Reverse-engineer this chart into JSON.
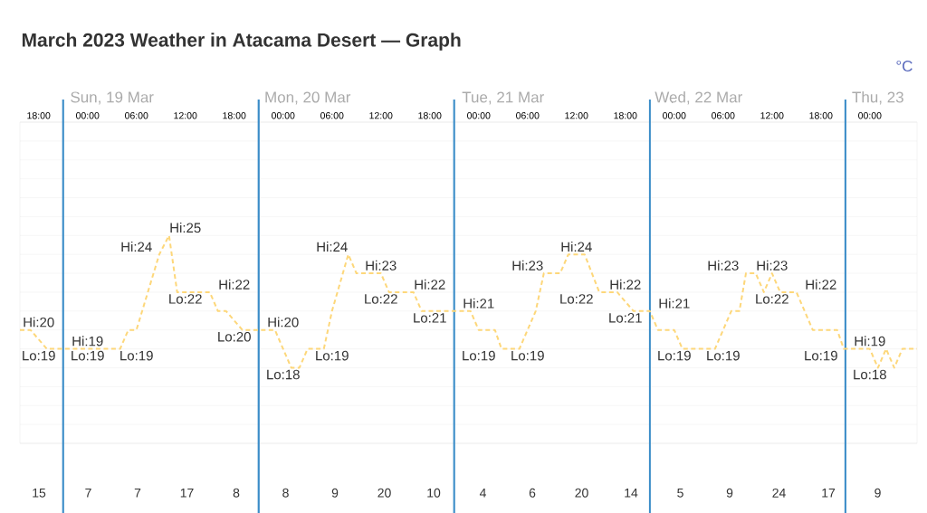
{
  "chart_data": [
    {
      "type": "line",
      "title": "March 2023 Weather in Atacama Desert — Graph",
      "series": [
        {
          "color": "#fdd77a",
          "line_style": "dashed",
          "marker": "none",
          "x": [
            "2023-03-18T15:42",
            "2023-03-18T17:00",
            "2023-03-18T19:00",
            "2023-03-19T00:00",
            "2023-03-19T00:30",
            "2023-03-19T04:00",
            "2023-03-19T05:00",
            "2023-03-19T06:00",
            "2023-03-19T08:48",
            "2023-03-19T10:00",
            "2023-03-19T11:00",
            "2023-03-19T15:00",
            "2023-03-19T16:00",
            "2023-03-19T17:00",
            "2023-03-19T19:00",
            "2023-03-19T23:00",
            "2023-03-20T01:00",
            "2023-03-20T02:00",
            "2023-03-20T03:00",
            "2023-03-20T05:00",
            "2023-03-20T06:00",
            "2023-03-20T08:00",
            "2023-03-20T09:00",
            "2023-03-20T12:00",
            "2023-03-20T13:00",
            "2023-03-20T16:00",
            "2023-03-20T17:00",
            "2023-03-20T23:00",
            "2023-03-21T00:00",
            "2023-03-21T02:00",
            "2023-03-21T02:48",
            "2023-03-21T05:00",
            "2023-03-21T07:00",
            "2023-03-21T08:00",
            "2023-03-21T10:00",
            "2023-03-21T11:00",
            "2023-03-21T13:00",
            "2023-03-21T14:48",
            "2023-03-21T17:00",
            "2023-03-21T19:00",
            "2023-03-21T21:00",
            "2023-03-21T22:00",
            "2023-03-22T00:00",
            "2023-03-22T01:00",
            "2023-03-22T05:00",
            "2023-03-22T07:00",
            "2023-03-22T08:00",
            "2023-03-22T08:48",
            "2023-03-22T10:00",
            "2023-03-22T11:00",
            "2023-03-22T12:00",
            "2023-03-22T13:00",
            "2023-03-22T15:00",
            "2023-03-22T17:00",
            "2023-03-22T20:00",
            "2023-03-22T20:48",
            "2023-03-23T00:00",
            "2023-03-23T01:00",
            "2023-03-23T02:00",
            "2023-03-23T03:00",
            "2023-03-23T04:00",
            "2023-03-23T05:48"
          ],
          "values": [
            20,
            20,
            19,
            19,
            19,
            19,
            20,
            20,
            24,
            25,
            22,
            22,
            21,
            21,
            20,
            20,
            18,
            18,
            19,
            19,
            21,
            24,
            23,
            23,
            22,
            22,
            21,
            21,
            20,
            20,
            19,
            19,
            21,
            23,
            23,
            24,
            24,
            22,
            22,
            21,
            21,
            20,
            20,
            19,
            19,
            21,
            21,
            23,
            23,
            22,
            23,
            22,
            22,
            20,
            20,
            19,
            19,
            18,
            19,
            18,
            19,
            19
          ],
          "value_labels": [
            null,
            "Hi:20",
            "Lo:19",
            "Hi:19",
            "Lo:19",
            "Lo:19",
            null,
            null,
            "Hi:24",
            "Hi:25",
            "Lo:22",
            "Hi:22",
            null,
            null,
            "Lo:20",
            "Hi:20",
            "Lo:18",
            null,
            null,
            "Lo:19",
            null,
            "Hi:24",
            "Hi:23",
            null,
            "Lo:22",
            "Hi:22",
            "Lo:21",
            "Hi:21",
            null,
            null,
            "Lo:19",
            "Lo:19",
            null,
            "Hi:23",
            null,
            "Hi:24",
            null,
            "Lo:22",
            "Hi:22",
            "Lo:21",
            "Hi:21",
            null,
            null,
            "Lo:19",
            "Lo:19",
            null,
            null,
            "Hi:23",
            null,
            null,
            "Hi:23",
            "Lo:22",
            "Hi:22",
            null,
            null,
            "Lo:19",
            "Hi:19",
            "Lo:18",
            null,
            null,
            null,
            null
          ]
        }
      ],
      "xlim": [
        "2023-03-18T15:42",
        "2023-03-23T05:48"
      ],
      "ylim": [
        14,
        31
      ],
      "xticks": [
        {
          "value": "2023-03-18T18:00",
          "label": "18:00"
        },
        {
          "value": "2023-03-19T00:00",
          "label": "00:00"
        },
        {
          "value": "2023-03-19T06:00",
          "label": "06:00"
        },
        {
          "value": "2023-03-19T12:00",
          "label": "12:00"
        },
        {
          "value": "2023-03-19T18:00",
          "label": "18:00"
        },
        {
          "value": "2023-03-20T00:00",
          "label": "00:00"
        },
        {
          "value": "2023-03-20T06:00",
          "label": "06:00"
        },
        {
          "value": "2023-03-20T12:00",
          "label": "12:00"
        },
        {
          "value": "2023-03-20T18:00",
          "label": "18:00"
        },
        {
          "value": "2023-03-21T00:00",
          "label": "00:00"
        },
        {
          "value": "2023-03-21T06:00",
          "label": "06:00"
        },
        {
          "value": "2023-03-21T12:00",
          "label": "12:00"
        },
        {
          "value": "2023-03-21T18:00",
          "label": "18:00"
        },
        {
          "value": "2023-03-22T00:00",
          "label": "00:00"
        },
        {
          "value": "2023-03-22T06:00",
          "label": "06:00"
        },
        {
          "value": "2023-03-22T12:00",
          "label": "12:00"
        },
        {
          "value": "2023-03-22T18:00",
          "label": "18:00"
        },
        {
          "value": "2023-03-23T00:00",
          "label": "00:00"
        }
      ],
      "x2lim": [
        "2023-03-18T15:42",
        "2023-03-23T05:48"
      ],
      "x2ticks": [
        {
          "value": "2023-03-19T03:00",
          "label": "Sun, 19 Mar"
        },
        {
          "value": "2023-03-20T03:00",
          "label": "Mon, 20 Mar"
        },
        {
          "value": "2023-03-21T03:00",
          "label": "Tue, 21 Mar"
        },
        {
          "value": "2023-03-22T03:00",
          "label": "Wed, 22 Mar"
        },
        {
          "value": "2023-03-23T01:00",
          "label": "Thu, 23"
        }
      ],
      "yticks": [
        {
          "value": 14,
          "label": null
        },
        {
          "value": 15,
          "label": null
        },
        {
          "value": 16,
          "label": null
        },
        {
          "value": 17,
          "label": null
        },
        {
          "value": 18,
          "label": null
        },
        {
          "value": 19,
          "label": null
        },
        {
          "value": 20,
          "label": null
        },
        {
          "value": 21,
          "label": null
        },
        {
          "value": 22,
          "label": null
        },
        {
          "value": 23,
          "label": null
        },
        {
          "value": 24,
          "label": null
        },
        {
          "value": 25,
          "label": null
        },
        {
          "value": 26,
          "label": null
        },
        {
          "value": 27,
          "label": null
        },
        {
          "value": 28,
          "label": null
        },
        {
          "value": 29,
          "label": null
        },
        {
          "value": 30,
          "label": null
        },
        {
          "value": 31,
          "label": null
        }
      ],
      "tick_labels": "x",
      "grid": "y",
      "ref_lines": [
        {
          "axis": "x",
          "value": "2023-03-18T21:00",
          "color": "#3a8cc8"
        },
        {
          "axis": "x",
          "value": "2023-03-19T21:00",
          "color": "#3a8cc8"
        },
        {
          "axis": "x",
          "value": "2023-03-20T21:00",
          "color": "#3a8cc8"
        },
        {
          "axis": "x",
          "value": "2023-03-21T21:00",
          "color": "#3a8cc8"
        },
        {
          "axis": "x",
          "value": "2023-03-22T21:00",
          "color": "#3a8cc8"
        }
      ],
      "annotations": [
        "°C"
      ]
    },
    {
      "type": "other",
      "categories": [
        null,
        null,
        null,
        null,
        null,
        null,
        null,
        null,
        null,
        null,
        null,
        null,
        null,
        null,
        null,
        null,
        null,
        null
      ],
      "values": [
        15,
        7,
        7,
        17,
        8,
        8,
        9,
        20,
        10,
        4,
        6,
        20,
        14,
        5,
        9,
        24,
        17,
        9
      ],
      "data_labels": true
    }
  ]
}
